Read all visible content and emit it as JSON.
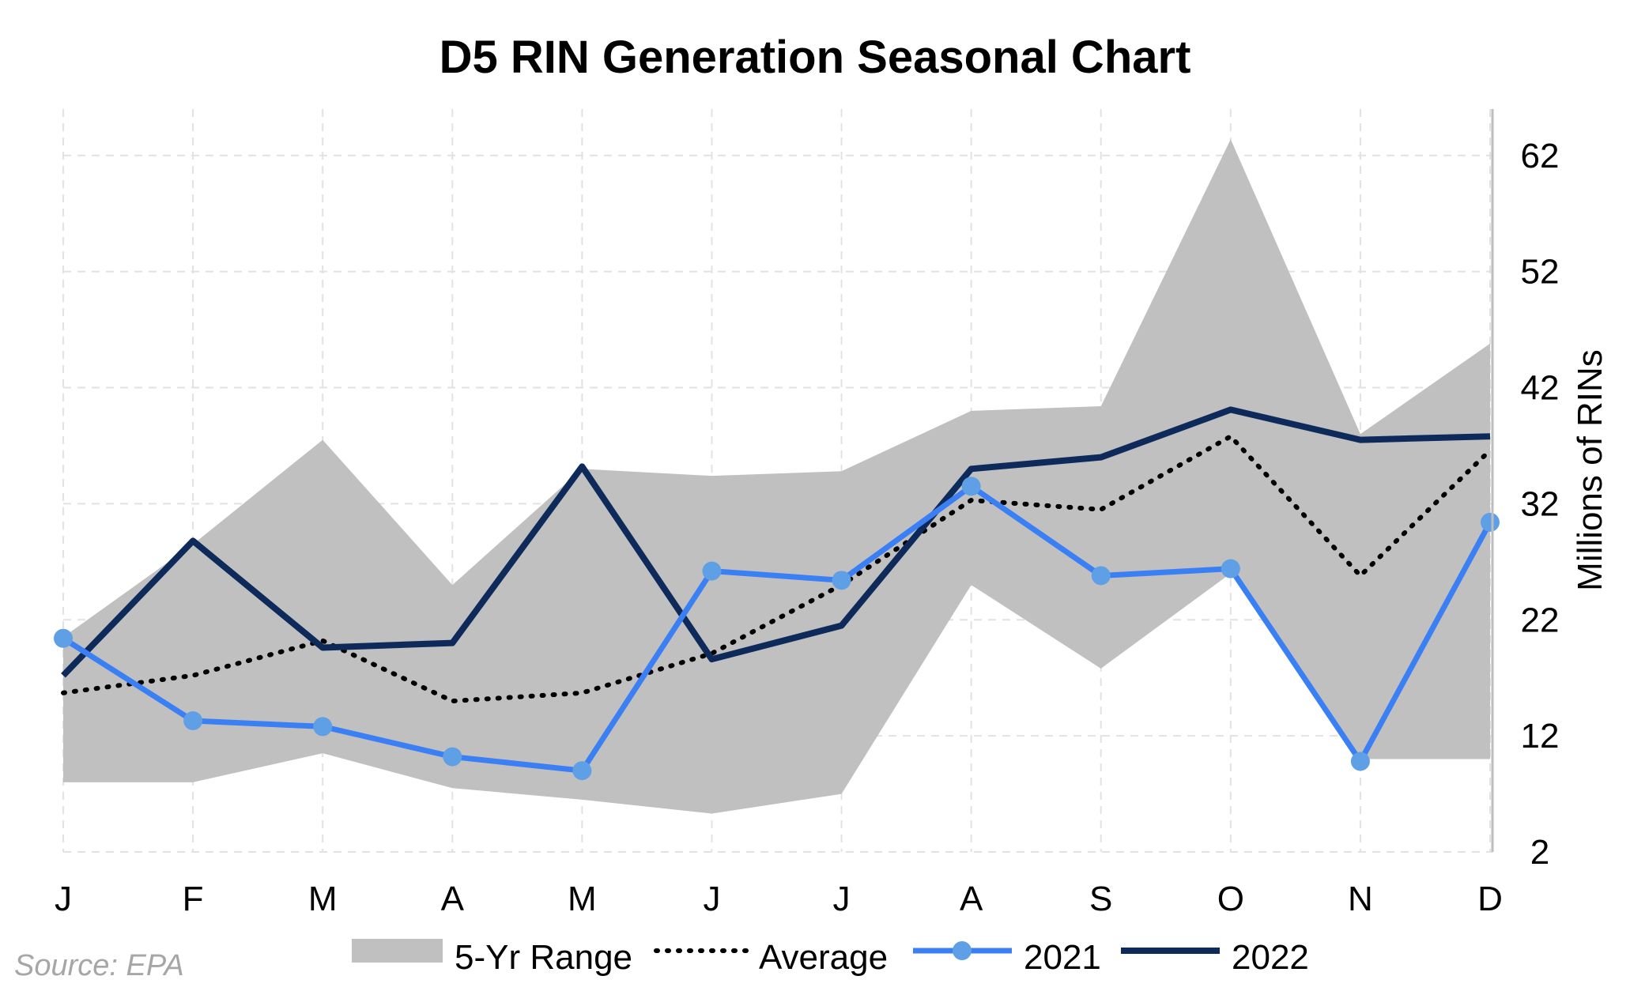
{
  "chart_data": {
    "type": "line",
    "title": "D5 RIN Generation Seasonal Chart",
    "ylabel": "Millions of RINs",
    "xlabel": "",
    "y_axis_position": "right",
    "categories": [
      "J",
      "F",
      "M",
      "A",
      "M",
      "J",
      "J",
      "A",
      "S",
      "O",
      "N",
      "D"
    ],
    "ylim": [
      2,
      66
    ],
    "yticks": [
      2,
      12,
      22,
      32,
      42,
      52,
      62
    ],
    "grid": true,
    "grid_style": "dashed",
    "legend_position": "bottom",
    "range": {
      "name": "5-Yr Range",
      "color": "#c0c0c0",
      "low": [
        8.0,
        8.0,
        10.5,
        7.5,
        6.5,
        5.3,
        7.0,
        25.0,
        17.8,
        26.0,
        10.0,
        10.0
      ],
      "high": [
        20.5,
        28.5,
        37.5,
        25.0,
        35.0,
        34.4,
        34.8,
        40.0,
        40.4,
        63.4,
        38.0,
        45.8
      ]
    },
    "series": [
      {
        "name": "Average",
        "style": "dotted",
        "color": "#000000",
        "values": [
          15.7,
          17.2,
          20.2,
          15.0,
          15.7,
          19.1,
          25.0,
          32.3,
          31.5,
          37.8,
          25.8,
          36.6
        ]
      },
      {
        "name": "2021",
        "style": "line-markers",
        "color": "#3b7ff5",
        "marker_color": "#5f9fe6",
        "values": [
          20.4,
          13.3,
          12.8,
          10.2,
          9.0,
          26.2,
          25.4,
          33.5,
          25.8,
          26.4,
          9.8,
          30.4
        ]
      },
      {
        "name": "2022",
        "style": "solid",
        "color": "#0d2a5a",
        "values": [
          17.2,
          28.8,
          19.6,
          20.0,
          35.2,
          18.6,
          21.5,
          35.0,
          36.0,
          40.1,
          37.5,
          37.8
        ]
      }
    ]
  },
  "source": "Source: EPA"
}
